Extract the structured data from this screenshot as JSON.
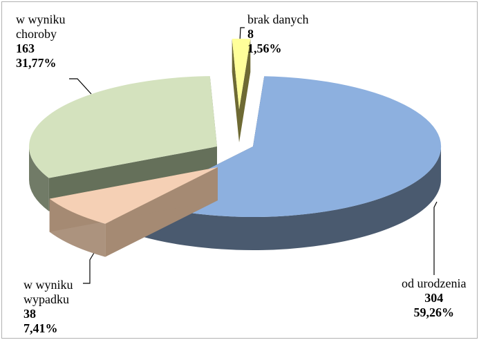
{
  "chart_data": {
    "type": "pie",
    "style": "3d-exploded",
    "slices": [
      {
        "label": "od urodzenia",
        "count_label": "304",
        "percent_label": "59,26%",
        "value": 304,
        "color": "#8db0df",
        "dark": "#3b4c63"
      },
      {
        "label": "w wyniku wypadku",
        "count_label": "38",
        "percent_label": "7,41%",
        "value": 38,
        "color": "#f5d0b5",
        "dark": "#a58a73"
      },
      {
        "label": "w wyniku choroby",
        "count_label": "163",
        "percent_label": "31,77%",
        "value": 163,
        "color": "#d4e2be",
        "dark": "#65705a"
      },
      {
        "label": "brak danych",
        "count_label": "8",
        "percent_label": "1,56%",
        "value": 8,
        "color": "#ffff9a",
        "dark": "#6e6a34"
      }
    ],
    "legend_labels": {
      "slice0_line1": "od urodzenia",
      "slice1_line1": "w wyniku",
      "slice1_line2": "wypadku",
      "slice2_line1": "w wyniku",
      "slice2_line2": "choroby",
      "slice3_line1": "brak danych"
    }
  }
}
